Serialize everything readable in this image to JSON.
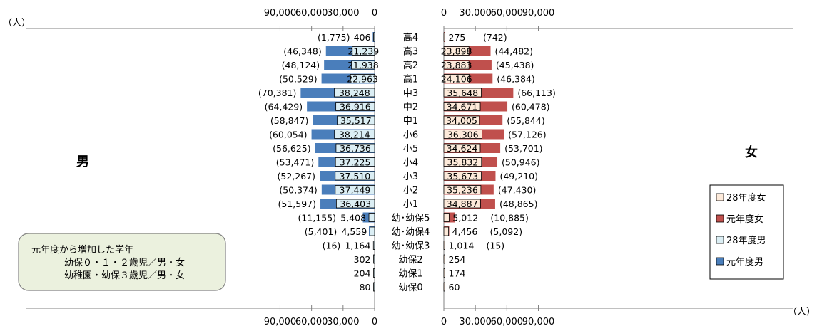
{
  "chart_data": {
    "type": "bar",
    "orientation": "horizontal-pyramid",
    "unit_label": "（人）",
    "left_label": "男",
    "right_label": "女",
    "axis_ticks": [
      "90,000",
      "60,000",
      "30,000",
      "0"
    ],
    "axis_tick_values": [
      90000,
      60000,
      30000,
      0
    ],
    "xlim": [
      0,
      100000
    ],
    "categories": [
      "高4",
      "高3",
      "高2",
      "高1",
      "中3",
      "中2",
      "中1",
      "小6",
      "小5",
      "小4",
      "小3",
      "小2",
      "小1",
      "幼･幼保5",
      "幼･幼保4",
      "幼･幼保3",
      "幼保2",
      "幼保1",
      "幼保0"
    ],
    "series": [
      {
        "name": "元年度男",
        "color": "#4a7ebb",
        "values": [
          1775,
          46348,
          48124,
          50529,
          70381,
          64429,
          58847,
          60054,
          56625,
          53471,
          52267,
          50374,
          51597,
          11155,
          5401,
          16,
          null,
          null,
          null
        ],
        "labels": [
          "(1,775)",
          "(46,348)",
          "(48,124)",
          "(50,529)",
          "(70,381)",
          "(64,429)",
          "(58,847)",
          "(60,054)",
          "(56,625)",
          "(53,471)",
          "(52,267)",
          "(50,374)",
          "(51,597)",
          "(11,155)",
          "(5,401)",
          "(16)",
          "",
          "",
          ""
        ]
      },
      {
        "name": "28年度男",
        "color": "#dbeef4",
        "values": [
          406,
          21239,
          21938,
          22963,
          38248,
          36916,
          35517,
          38214,
          36736,
          37225,
          37510,
          37449,
          36403,
          5408,
          4559,
          1164,
          302,
          204,
          80
        ],
        "labels": [
          "406",
          "21,239",
          "21,938",
          "22,963",
          "38,248",
          "36,916",
          "35,517",
          "38,214",
          "36,736",
          "37,225",
          "37,510",
          "37,449",
          "36,403",
          "5,408",
          "4,559",
          "1,164",
          "302",
          "204",
          "80"
        ]
      },
      {
        "name": "元年度女",
        "color": "#c0504d",
        "values": [
          742,
          44482,
          45438,
          46384,
          66113,
          60478,
          55844,
          57126,
          53701,
          50946,
          49210,
          47430,
          48865,
          10885,
          5092,
          15,
          null,
          null,
          null
        ],
        "labels": [
          "(742)",
          "(44,482)",
          "(45,438)",
          "(46,384)",
          "(66,113)",
          "(60,478)",
          "(55,844)",
          "(57,126)",
          "(53,701)",
          "(50,946)",
          "(49,210)",
          "(47,430)",
          "(48,865)",
          "(10,885)",
          "(5,092)",
          "(15)",
          "",
          "",
          ""
        ]
      },
      {
        "name": "28年度女",
        "color": "#fdeada",
        "values": [
          275,
          23898,
          23883,
          24106,
          35648,
          34671,
          34005,
          36306,
          34624,
          35832,
          35673,
          35236,
          34887,
          5012,
          4456,
          1014,
          254,
          174,
          60
        ],
        "labels": [
          "275",
          "23,898",
          "23,883",
          "24,106",
          "35,648",
          "34,671",
          "34,005",
          "36,306",
          "34,624",
          "35,832",
          "35,673",
          "35,236",
          "34,887",
          "5,012",
          "4,456",
          "1,014",
          "254",
          "174",
          "60"
        ]
      }
    ],
    "legend": {
      "placement": "right",
      "items": [
        {
          "label": "28年度女",
          "color": "#fdeada"
        },
        {
          "label": "元年度女",
          "color": "#c0504d"
        },
        {
          "label": "28年度男",
          "color": "#dbeef4"
        },
        {
          "label": "元年度男",
          "color": "#4a7ebb"
        }
      ]
    },
    "note": {
      "title": "元年度から増加した学年",
      "lines": [
        "幼保０・１・２歳児／男・女",
        "幼稚園・幼保３歳児／男・女"
      ]
    }
  }
}
